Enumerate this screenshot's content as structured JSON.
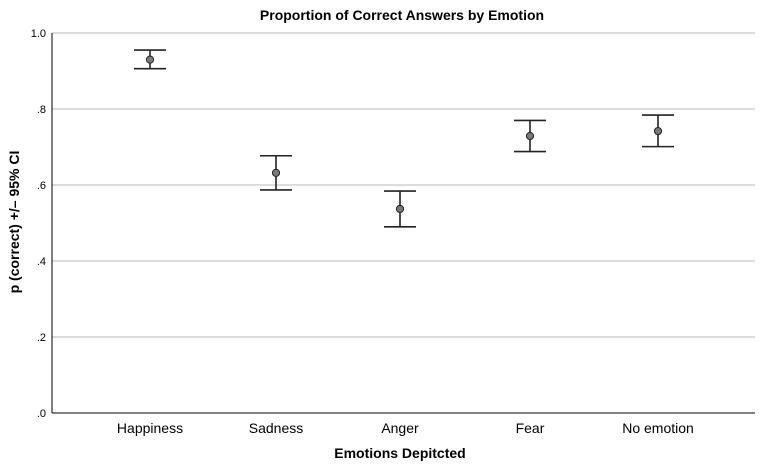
{
  "chart_data": {
    "type": "scatter",
    "title": "Proportion of Correct Answers by Emotion",
    "xlabel": "Emotions Depitcted",
    "ylabel": "p (correct) +/– 95% CI",
    "ylim": [
      0,
      1.0
    ],
    "yticks": [
      0,
      0.2,
      0.4,
      0.6,
      0.8,
      1.0
    ],
    "ytick_labels": [
      ".0",
      ".2",
      ".4",
      ".6",
      ".8",
      "1.0"
    ],
    "grid": true,
    "categories": [
      "Happiness",
      "Sadness",
      "Anger",
      "Fear",
      "No emotion"
    ],
    "series": [
      {
        "values": [
          0.93,
          0.632,
          0.537,
          0.729,
          0.742
        ],
        "ci_lower": [
          0.906,
          0.587,
          0.49,
          0.688,
          0.701
        ],
        "ci_upper": [
          0.955,
          0.677,
          0.584,
          0.77,
          0.784
        ]
      }
    ]
  }
}
